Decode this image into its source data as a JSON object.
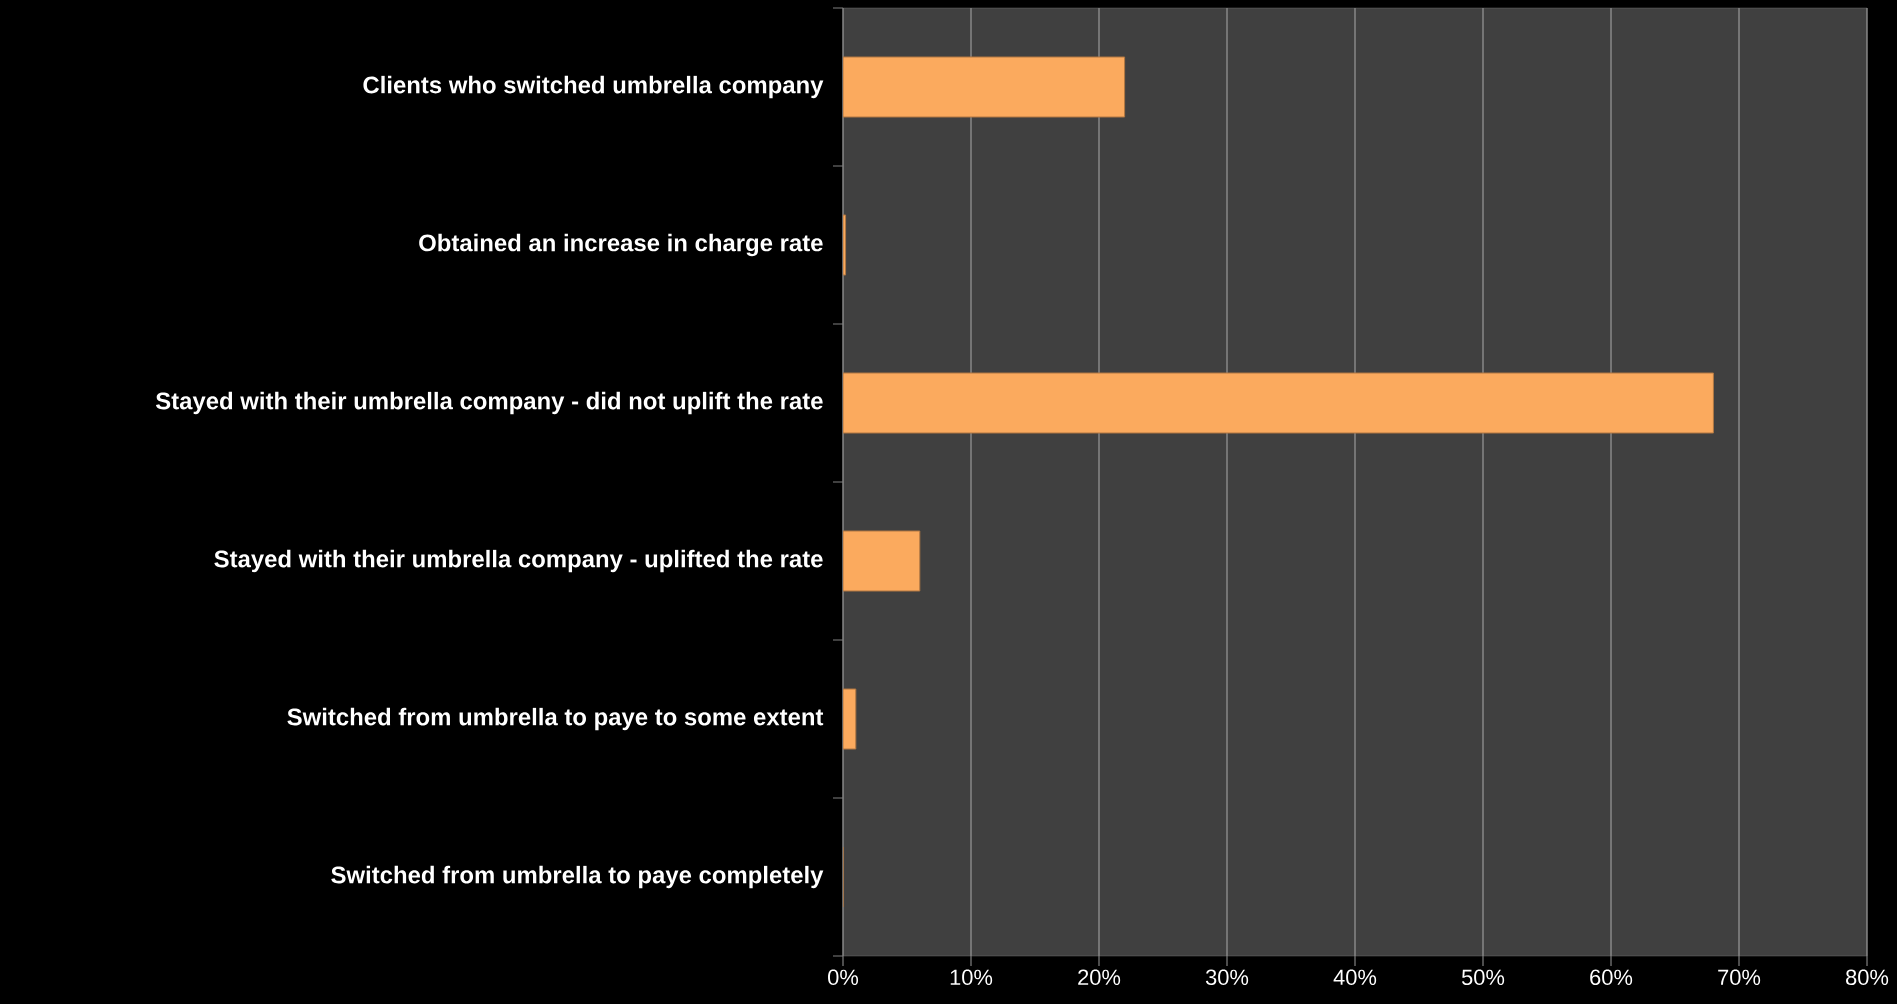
{
  "chart_data": {
    "type": "bar",
    "orientation": "horizontal",
    "categories": [
      "Clients who switched umbrella company",
      "Obtained an increase in charge rate",
      "Stayed with their umbrella company - did not uplift the rate",
      "Stayed with their umbrella company - uplifted the rate",
      "Switched from umbrella to paye to some extent",
      "Switched from umbrella to paye completely"
    ],
    "values": [
      22,
      0.2,
      68,
      6,
      1,
      0
    ],
    "color": "#fbaa5e",
    "xlim": [
      0,
      80
    ],
    "xticks": [
      {
        "value": 0,
        "label": "0%"
      },
      {
        "value": 10,
        "label": "10%"
      },
      {
        "value": 20,
        "label": "20%"
      },
      {
        "value": 30,
        "label": "30%"
      },
      {
        "value": 40,
        "label": "40%"
      },
      {
        "value": 50,
        "label": "50%"
      },
      {
        "value": 60,
        "label": "60%"
      },
      {
        "value": 70,
        "label": "70%"
      },
      {
        "value": 80,
        "label": "80%"
      }
    ],
    "grid": "x"
  }
}
